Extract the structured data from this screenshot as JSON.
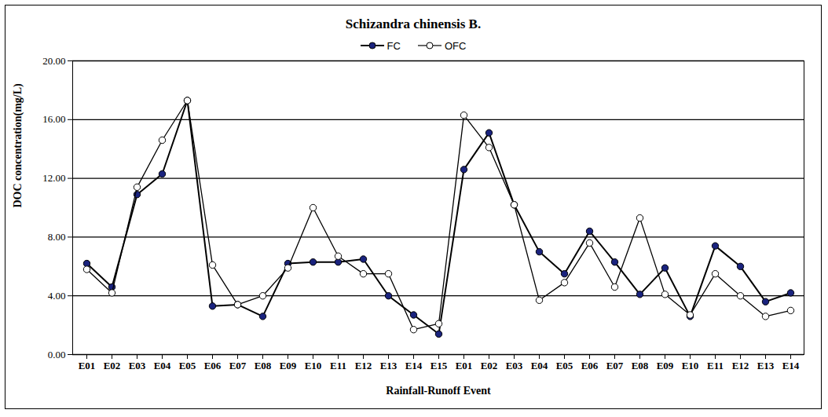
{
  "chart_data": {
    "type": "line",
    "title": "Schizandra chinensis B.",
    "x_label": "Rainfall-Runoff Event",
    "y_label": "DOC concentration(mg/L)",
    "categories": [
      "E01",
      "E02",
      "E03",
      "E04",
      "E05",
      "E06",
      "E07",
      "E08",
      "E09",
      "E10",
      "E11",
      "E12",
      "E13",
      "E14",
      "E15",
      "E01",
      "E02",
      "E03",
      "E04",
      "E05",
      "E06",
      "E07",
      "E08",
      "E09",
      "E10",
      "E11",
      "E12",
      "E13",
      "E14"
    ],
    "series": [
      {
        "name": "FC",
        "color": "#1a237e",
        "marker": "circle",
        "line_style": "solid",
        "values": [
          6.2,
          4.6,
          10.9,
          12.3,
          17.3,
          3.3,
          3.4,
          2.6,
          6.2,
          6.3,
          6.3,
          6.5,
          4.0,
          2.7,
          1.4,
          12.6,
          15.1,
          10.2,
          7.0,
          5.5,
          8.4,
          6.3,
          4.1,
          5.9,
          2.6,
          7.4,
          6.0,
          3.6,
          4.2
        ]
      },
      {
        "name": "OFC",
        "color": "#000000",
        "marker": "open-circle",
        "line_style": "solid",
        "values": [
          5.8,
          4.2,
          11.4,
          14.6,
          17.3,
          6.1,
          3.4,
          4.0,
          5.9,
          10.0,
          6.7,
          5.5,
          5.5,
          1.7,
          2.1,
          16.3,
          14.1,
          10.2,
          3.7,
          4.9,
          7.6,
          4.6,
          9.3,
          4.1,
          2.7,
          5.5,
          4.0,
          2.6,
          3.0
        ]
      }
    ],
    "ylim": [
      0,
      20
    ],
    "yticks": [
      {
        "value": 0,
        "label": "0.00"
      },
      {
        "value": 4,
        "label": "4.00"
      },
      {
        "value": 8,
        "label": "8.00"
      },
      {
        "value": 12,
        "label": "12.00"
      },
      {
        "value": 16,
        "label": "16.00"
      },
      {
        "value": 20,
        "label": "20.00"
      }
    ],
    "grid": true,
    "legend": "top"
  }
}
